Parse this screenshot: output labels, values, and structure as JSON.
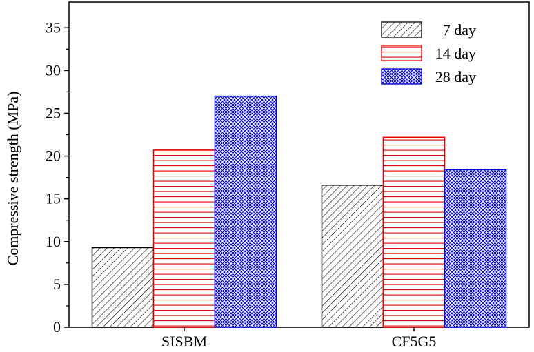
{
  "chart_data": {
    "type": "bar",
    "title": "",
    "xlabel": "",
    "ylabel": "Compressive strength (MPa)",
    "categories": [
      "SISBM",
      "CF5G5"
    ],
    "series": [
      {
        "name": "7 day",
        "values": [
          9.3,
          16.6
        ],
        "color": "#000000",
        "pattern": "diagonal-hatch"
      },
      {
        "name": "14 day",
        "values": [
          20.7,
          22.2
        ],
        "color": "#e00000",
        "pattern": "horizontal-lines"
      },
      {
        "name": "28 day",
        "values": [
          27.0,
          18.4
        ],
        "color": "#0000e0",
        "pattern": "crosshatch"
      }
    ],
    "ylim": [
      0,
      38
    ],
    "yticks": [
      "0",
      "5",
      "10",
      "15",
      "20",
      "25",
      "30",
      "35"
    ],
    "ytick_values": [
      0,
      5,
      10,
      15,
      20,
      25,
      30,
      35
    ],
    "grid": false,
    "legend_position": "top-right"
  }
}
